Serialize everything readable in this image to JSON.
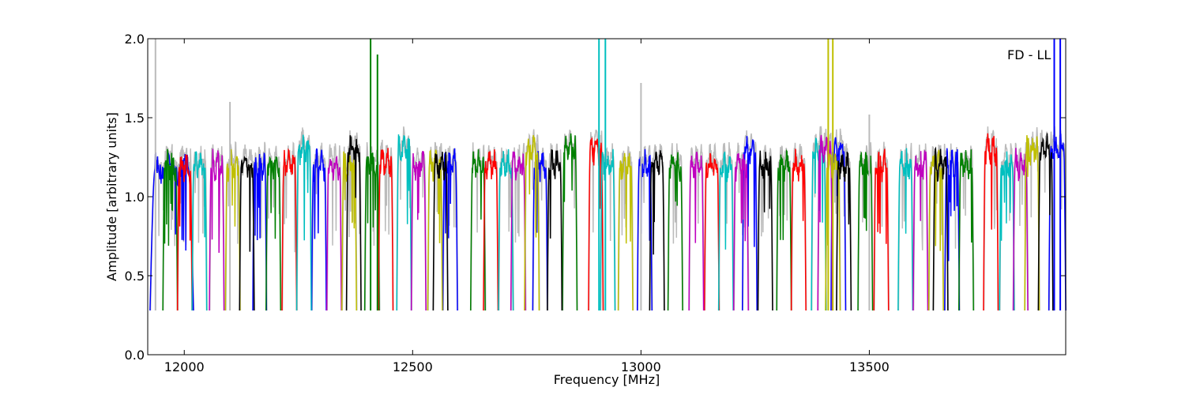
{
  "chart_data": {
    "type": "line",
    "title": "",
    "xlabel": "Frequency [MHz]",
    "ylabel": "Amplitude [arbitrary units]",
    "annotation": "FD - LL",
    "xlim": [
      11920,
      13930
    ],
    "ylim": [
      0.0,
      2.0
    ],
    "xticks": [
      12000,
      12500,
      13000,
      13500
    ],
    "yticks": [
      0.0,
      0.5,
      1.0,
      1.5,
      2.0
    ],
    "ytick_labels": [
      "0.0",
      "0.5",
      "1.0",
      "1.5",
      "2.0"
    ],
    "grid": false,
    "legend": "none",
    "band_width_mhz": 32,
    "channel_min": 0.28,
    "colors": [
      "#0000ff",
      "#008000",
      "#ff0000",
      "#00bfbf",
      "#bf00bf",
      "#bfbf00",
      "#000000"
    ],
    "background_trace_color": "#bbbbbb",
    "series": [
      {
        "color": "#0000ff",
        "segments": [
          [
            11925,
            12020,
            1.18
          ],
          [
            12150,
            12180,
            1.2
          ],
          [
            12279,
            12311,
            1.2
          ],
          [
            12566,
            12598,
            1.2
          ],
          [
            12763,
            12795,
            1.2
          ],
          [
            12992,
            13024,
            1.2
          ],
          [
            13222,
            13254,
            1.3
          ],
          [
            13416,
            13448,
            1.3
          ],
          [
            13665,
            13697,
            1.2
          ],
          [
            13893,
            13930,
            1.3
          ]
        ]
      },
      {
        "color": "#008000",
        "segments": [
          [
            11953,
            11985,
            1.2
          ],
          [
            12179,
            12211,
            1.2
          ],
          [
            12395,
            12427,
            1.2
          ],
          [
            12627,
            12659,
            1.2
          ],
          [
            12828,
            12860,
            1.3
          ],
          [
            13059,
            13091,
            1.2
          ],
          [
            13297,
            13329,
            1.2
          ],
          [
            13475,
            13507,
            1.2
          ],
          [
            13696,
            13728,
            1.2
          ]
        ]
      },
      {
        "color": "#ff0000",
        "segments": [
          [
            11985,
            12017,
            1.18
          ],
          [
            12214,
            12246,
            1.2
          ],
          [
            12425,
            12457,
            1.22
          ],
          [
            12655,
            12687,
            1.2
          ],
          [
            12885,
            12917,
            1.3
          ],
          [
            13139,
            13171,
            1.2
          ],
          [
            13329,
            13361,
            1.2
          ],
          [
            13510,
            13542,
            1.2
          ],
          [
            13750,
            13782,
            1.3
          ]
        ]
      },
      {
        "color": "#00bfbf",
        "segments": [
          [
            12017,
            12049,
            1.2
          ],
          [
            12246,
            12278,
            1.3
          ],
          [
            12465,
            12497,
            1.3
          ],
          [
            12688,
            12720,
            1.2
          ],
          [
            12911,
            12943,
            1.2
          ],
          [
            13170,
            13202,
            1.2
          ],
          [
            13373,
            13405,
            1.3
          ],
          [
            13563,
            13595,
            1.2
          ],
          [
            13785,
            13817,
            1.2
          ]
        ]
      },
      {
        "color": "#bf00bf",
        "segments": [
          [
            12055,
            12087,
            1.2
          ],
          [
            12312,
            12344,
            1.2
          ],
          [
            12497,
            12529,
            1.2
          ],
          [
            12715,
            12747,
            1.2
          ],
          [
            13105,
            13137,
            1.2
          ],
          [
            13203,
            13235,
            1.2
          ],
          [
            13387,
            13419,
            1.3
          ],
          [
            13596,
            13628,
            1.2
          ],
          [
            13815,
            13847,
            1.2
          ]
        ]
      },
      {
        "color": "#bfbf00",
        "segments": [
          [
            12090,
            12122,
            1.2
          ],
          [
            12345,
            12377,
            1.2
          ],
          [
            12533,
            12565,
            1.2
          ],
          [
            12745,
            12777,
            1.3
          ],
          [
            12950,
            12982,
            1.2
          ],
          [
            13404,
            13436,
            1.2
          ],
          [
            13630,
            13662,
            1.2
          ],
          [
            13840,
            13872,
            1.3
          ]
        ]
      },
      {
        "color": "#000000",
        "segments": [
          [
            12121,
            12153,
            1.2
          ],
          [
            12355,
            12387,
            1.3
          ],
          [
            12545,
            12577,
            1.2
          ],
          [
            12795,
            12827,
            1.2
          ],
          [
            13019,
            13051,
            1.2
          ],
          [
            13256,
            13288,
            1.2
          ],
          [
            13428,
            13460,
            1.2
          ],
          [
            13640,
            13672,
            1.2
          ],
          [
            13870,
            13902,
            1.3
          ]
        ]
      }
    ],
    "spikes": [
      {
        "x": 11937,
        "y": 2.0,
        "color": "#bbbbbb"
      },
      {
        "x": 12100,
        "y": 1.6,
        "color": "#bbbbbb"
      },
      {
        "x": 12408,
        "y": 2.0,
        "color": "#008000"
      },
      {
        "x": 12423,
        "y": 1.9,
        "color": "#008000"
      },
      {
        "x": 12908,
        "y": 2.0,
        "color": "#00bfbf"
      },
      {
        "x": 12922,
        "y": 2.0,
        "color": "#00bfbf"
      },
      {
        "x": 13000,
        "y": 1.72,
        "color": "#bbbbbb"
      },
      {
        "x": 13410,
        "y": 2.0,
        "color": "#bfbf00"
      },
      {
        "x": 13420,
        "y": 2.0,
        "color": "#bfbf00"
      },
      {
        "x": 13500,
        "y": 1.52,
        "color": "#bbbbbb"
      },
      {
        "x": 13905,
        "y": 2.0,
        "color": "#0000ff"
      },
      {
        "x": 13918,
        "y": 2.0,
        "color": "#0000ff"
      }
    ]
  }
}
